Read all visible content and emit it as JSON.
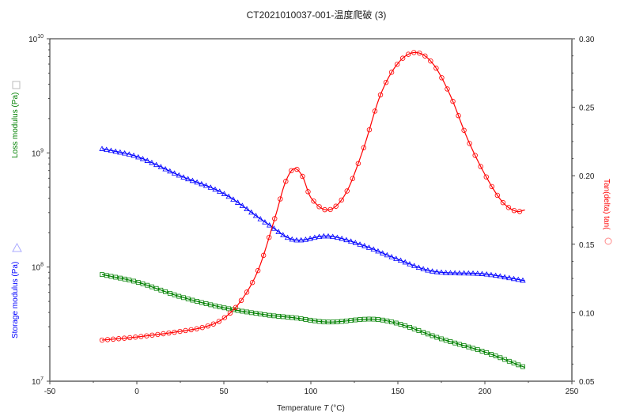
{
  "chart_data": {
    "type": "line",
    "title": "CT2021010037-001-温度爬破 (3)",
    "xlabel": "Temperature",
    "xlabel_var": "T",
    "xlabel_unit": "(°C)",
    "xlim": [
      -50,
      250
    ],
    "x_ticks": [
      "-50",
      "0",
      "50",
      "100",
      "150",
      "200",
      "250"
    ],
    "x_tick_values": [
      -50,
      0,
      50,
      100,
      150,
      200,
      250
    ],
    "ylim_left": [
      10000000,
      10000000000
    ],
    "y_left_scale": "log",
    "y_left_ticks": [
      {
        "base": "10",
        "exp": "10",
        "value": 10
      },
      {
        "base": "10",
        "exp": "9",
        "value": 9
      },
      {
        "base": "10",
        "exp": "8",
        "value": 8
      },
      {
        "base": "10",
        "exp": "7",
        "value": 7
      }
    ],
    "ylabel_left_loss": "Loss modulus    (Pa)",
    "ylabel_left_storage": "Storage modulus    (Pa)",
    "ylim_right": [
      0.05,
      0.3
    ],
    "y_right_ticks": [
      "0.30",
      "0.25",
      "0.20",
      "0.15",
      "0.10",
      "0.05"
    ],
    "y_right_tick_values": [
      0.3,
      0.25,
      0.2,
      0.15,
      0.1,
      0.05
    ],
    "ylabel_right": "Tan(delta) tanδ",
    "ylabel_right_shown": "Tan(delta) tan(",
    "series": [
      {
        "name": "Storage modulus",
        "axis": "left",
        "marker": "triangle",
        "color": "#0000ff",
        "x": [
          -20,
          0,
          25,
          50,
          75,
          90,
          110,
          130,
          150,
          170,
          200,
          223
        ],
        "y": [
          1090000000.0,
          930000000.0,
          630000000.0,
          440000000.0,
          240000000.0,
          174000000.0,
          187000000.0,
          155000000.0,
          117000000.0,
          92000000.0,
          87000000.0,
          76000000.0
        ]
      },
      {
        "name": "Loss modulus",
        "axis": "left",
        "marker": "square",
        "color": "#008000",
        "x": [
          -20,
          0,
          25,
          50,
          75,
          90,
          110,
          135,
          150,
          175,
          200,
          223
        ],
        "y": [
          86000000.0,
          74000000.0,
          55000000.0,
          44000000.0,
          38000000.0,
          36000000.0,
          33000000.0,
          35000000.0,
          32000000.0,
          23500000.0,
          18000000.0,
          13200000.0
        ]
      },
      {
        "name": "Tan(delta)",
        "axis": "right",
        "marker": "circle",
        "color": "#ff0000",
        "x": [
          -20,
          0,
          25,
          40,
          50,
          60,
          70,
          80,
          85,
          90,
          95,
          100,
          110,
          120,
          130,
          140,
          150,
          160,
          170,
          180,
          190,
          200,
          210,
          218,
          223
        ],
        "y": [
          0.08,
          0.0823,
          0.0864,
          0.09,
          0.096,
          0.109,
          0.132,
          0.172,
          0.194,
          0.205,
          0.2,
          0.184,
          0.175,
          0.187,
          0.219,
          0.259,
          0.282,
          0.29,
          0.282,
          0.259,
          0.227,
          0.201,
          0.181,
          0.174,
          0.175
        ]
      }
    ]
  }
}
